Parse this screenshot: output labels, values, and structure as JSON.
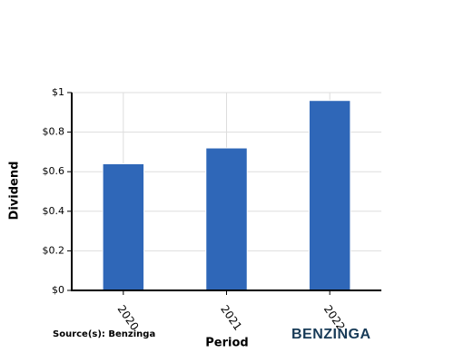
{
  "chart_data": {
    "type": "bar",
    "categories": [
      "2020",
      "2021",
      "2022"
    ],
    "values": [
      0.64,
      0.72,
      0.96
    ],
    "xlabel": "Period",
    "ylabel": "Dividend",
    "ylim": [
      0,
      1
    ],
    "yticks": [
      0,
      0.2,
      0.4,
      0.6,
      0.8,
      1
    ],
    "ytick_labels": [
      "$0",
      "$0.2",
      "$0.4",
      "$0.6",
      "$0.8",
      "$1"
    ],
    "grid": true,
    "bar_color": "#2f67b8"
  },
  "source_text": "Source(s): Benzinga",
  "logo_text": "BENZINGA"
}
